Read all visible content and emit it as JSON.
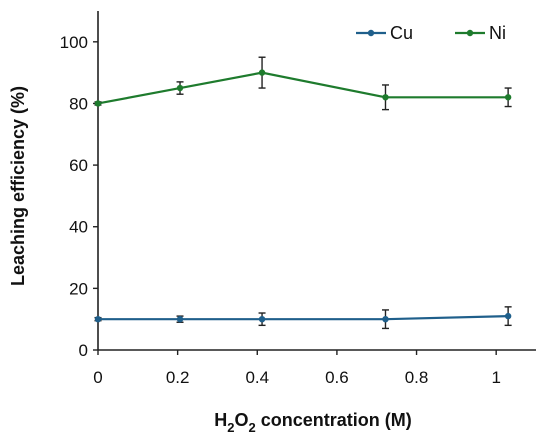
{
  "chart_data": {
    "type": "line",
    "title": "",
    "xlabel": {
      "prefix": "H",
      "sub1": "2",
      "mid": "O",
      "sub2": "2",
      "suffix": " concentration (M)"
    },
    "ylabel": "Leaching efficiency (%)",
    "xlim": [
      0,
      1.1
    ],
    "ylim": [
      0,
      110
    ],
    "xticks": [
      0,
      0.2,
      0.4,
      0.6,
      0.8,
      1
    ],
    "xtick_labels": [
      "0",
      "0.2",
      "0.4",
      "0.6",
      "0.8",
      "1"
    ],
    "yticks": [
      0,
      20,
      40,
      60,
      80,
      100
    ],
    "ytick_labels": [
      "0",
      "20",
      "40",
      "60",
      "80",
      "100"
    ],
    "grid": false,
    "legend_position": "top-right",
    "series": [
      {
        "name": "Cu",
        "color": "#1f5f8b",
        "x": [
          0,
          0.206,
          0.412,
          0.722,
          1.03
        ],
        "y": [
          10,
          10,
          10,
          10,
          11
        ],
        "err": [
          0.5,
          1,
          2,
          3,
          3
        ]
      },
      {
        "name": "Ni",
        "color": "#1e7b2d",
        "x": [
          0,
          0.206,
          0.412,
          0.722,
          1.03
        ],
        "y": [
          80,
          85,
          90,
          82,
          82
        ],
        "err": [
          0.5,
          2,
          5,
          4,
          3
        ]
      }
    ]
  }
}
